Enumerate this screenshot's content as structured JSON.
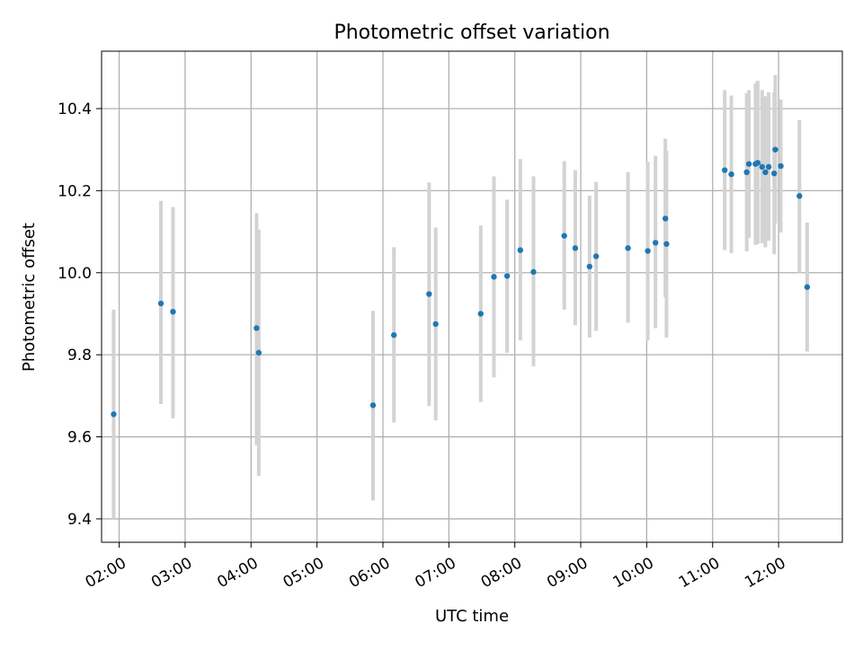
{
  "chart_data": {
    "type": "scatter",
    "title": "Photometric offset variation",
    "xlabel": "UTC time",
    "ylabel": "Photometric offset",
    "xlim": [
      "01:44",
      "12:58"
    ],
    "ylim": [
      9.343,
      10.54
    ],
    "x_ticks": [
      "02:00",
      "03:00",
      "04:00",
      "05:00",
      "06:00",
      "07:00",
      "08:00",
      "09:00",
      "10:00",
      "11:00",
      "12:00"
    ],
    "y_ticks": [
      9.4,
      9.6,
      9.8,
      10.0,
      10.2,
      10.4
    ],
    "y_tick_labels": [
      "9.4",
      "9.6",
      "9.8",
      "10.0",
      "10.2",
      "10.4"
    ],
    "grid": true,
    "colors": {
      "points": "#1f77b4",
      "errorbars": "#d3d3d3",
      "grid": "#b0b0b0"
    },
    "series": [
      {
        "points": [
          {
            "x": "01:55",
            "y": 9.655,
            "lo": 9.4,
            "hi": 9.91
          },
          {
            "x": "02:38",
            "y": 9.925,
            "lo": 9.68,
            "hi": 10.175
          },
          {
            "x": "02:49",
            "y": 9.905,
            "lo": 9.645,
            "hi": 10.16
          },
          {
            "x": "04:05",
            "y": 9.865,
            "lo": 9.58,
            "hi": 10.145
          },
          {
            "x": "04:07",
            "y": 9.805,
            "lo": 9.505,
            "hi": 10.105
          },
          {
            "x": "05:51",
            "y": 9.677,
            "lo": 9.445,
            "hi": 9.907
          },
          {
            "x": "06:10",
            "y": 9.848,
            "lo": 9.635,
            "hi": 10.062
          },
          {
            "x": "06:42",
            "y": 9.948,
            "lo": 9.675,
            "hi": 10.22
          },
          {
            "x": "06:48",
            "y": 9.875,
            "lo": 9.64,
            "hi": 10.11
          },
          {
            "x": "07:29",
            "y": 9.9,
            "lo": 9.685,
            "hi": 10.115
          },
          {
            "x": "07:41",
            "y": 9.99,
            "lo": 9.745,
            "hi": 10.235
          },
          {
            "x": "07:53",
            "y": 9.992,
            "lo": 9.805,
            "hi": 10.178
          },
          {
            "x": "08:05",
            "y": 10.055,
            "lo": 9.835,
            "hi": 10.277
          },
          {
            "x": "08:17",
            "y": 10.002,
            "lo": 9.772,
            "hi": 10.235
          },
          {
            "x": "08:45",
            "y": 10.09,
            "lo": 9.91,
            "hi": 10.272
          },
          {
            "x": "08:55",
            "y": 10.06,
            "lo": 9.872,
            "hi": 10.25
          },
          {
            "x": "09:08",
            "y": 10.015,
            "lo": 9.842,
            "hi": 10.188
          },
          {
            "x": "09:14",
            "y": 10.04,
            "lo": 9.858,
            "hi": 10.222
          },
          {
            "x": "09:43",
            "y": 10.06,
            "lo": 9.878,
            "hi": 10.245
          },
          {
            "x": "10:01",
            "y": 10.053,
            "lo": 9.835,
            "hi": 10.27
          },
          {
            "x": "10:08",
            "y": 10.073,
            "lo": 9.865,
            "hi": 10.285
          },
          {
            "x": "10:17",
            "y": 10.132,
            "lo": 9.94,
            "hi": 10.327
          },
          {
            "x": "10:18",
            "y": 10.07,
            "lo": 9.842,
            "hi": 10.297
          },
          {
            "x": "11:11",
            "y": 10.25,
            "lo": 10.055,
            "hi": 10.445
          },
          {
            "x": "11:17",
            "y": 10.24,
            "lo": 10.048,
            "hi": 10.432
          },
          {
            "x": "11:31",
            "y": 10.245,
            "lo": 10.052,
            "hi": 10.438
          },
          {
            "x": "11:33",
            "y": 10.265,
            "lo": 10.085,
            "hi": 10.445
          },
          {
            "x": "11:39",
            "y": 10.265,
            "lo": 10.068,
            "hi": 10.462
          },
          {
            "x": "11:41",
            "y": 10.268,
            "lo": 10.07,
            "hi": 10.468
          },
          {
            "x": "11:45",
            "y": 10.258,
            "lo": 10.072,
            "hi": 10.445
          },
          {
            "x": "11:48",
            "y": 10.245,
            "lo": 10.062,
            "hi": 10.43
          },
          {
            "x": "11:51",
            "y": 10.258,
            "lo": 10.078,
            "hi": 10.44
          },
          {
            "x": "11:56",
            "y": 10.242,
            "lo": 10.045,
            "hi": 10.44
          },
          {
            "x": "11:57",
            "y": 10.3,
            "lo": 10.12,
            "hi": 10.482
          },
          {
            "x": "12:02",
            "y": 10.26,
            "lo": 10.098,
            "hi": 10.422
          },
          {
            "x": "12:19",
            "y": 10.187,
            "lo": 10.0,
            "hi": 10.372
          },
          {
            "x": "12:26",
            "y": 9.965,
            "lo": 9.808,
            "hi": 10.122
          }
        ]
      }
    ]
  }
}
